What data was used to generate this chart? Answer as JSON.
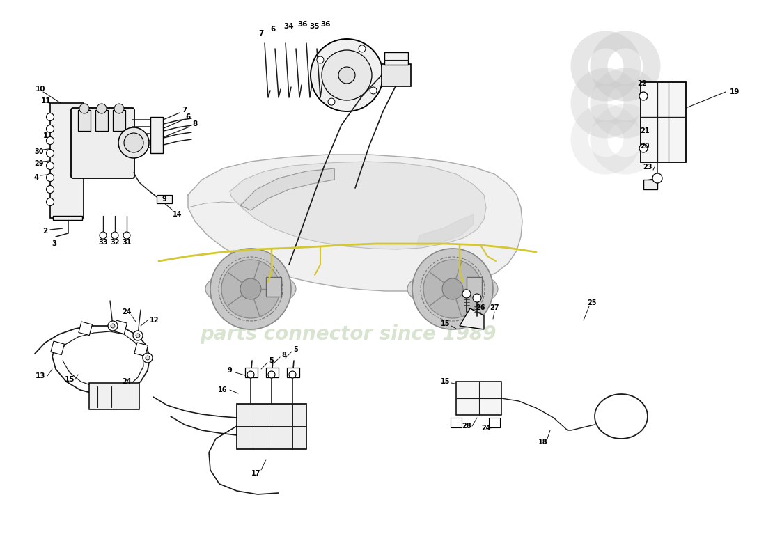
{
  "bg_color": "#ffffff",
  "lc": "#1a1a1a",
  "brake_line_color": "#d4c832",
  "component_fill": "#f2f2f2",
  "watermark_text": "parts connector since 1989",
  "watermark_color": "#c8d8b8",
  "logo_color": "#d0d0d0",
  "car_fill": "#e8e8e8",
  "car_outline": "#aaaaaa",
  "figsize": [
    11.0,
    8.0
  ],
  "dpi": 100
}
